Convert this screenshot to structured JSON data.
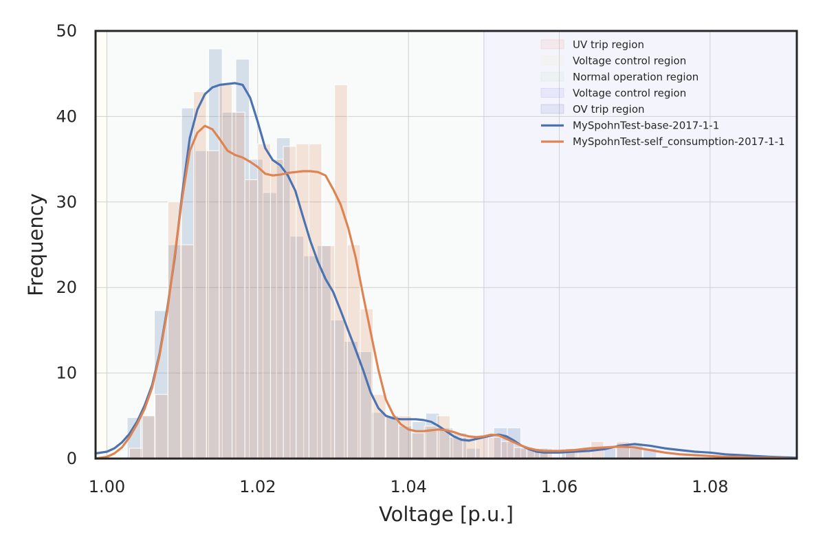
{
  "chart_data": {
    "type": "bar",
    "xlabel": "Voltage [p.u.]",
    "ylabel": "Frequency",
    "xlim": [
      0.9985,
      1.0915
    ],
    "ylim": [
      0,
      50
    ],
    "x_ticks": [
      "1.00",
      "1.02",
      "1.04",
      "1.06",
      "1.08"
    ],
    "x_tick_values": [
      1.0,
      1.02,
      1.04,
      1.06,
      1.08
    ],
    "y_ticks": [
      "0",
      "10",
      "20",
      "30",
      "40",
      "50"
    ],
    "y_tick_values": [
      0,
      10,
      20,
      30,
      40,
      50
    ],
    "grid": true,
    "legend_placement": "top-right",
    "regions": [
      {
        "label": "UV trip region",
        "x": [
          0.95,
          0.97
        ],
        "color": "#f2b8a8"
      },
      {
        "label": "Voltage control region",
        "x": [
          0.97,
          1.0
        ],
        "color": "#f5f0d0"
      },
      {
        "label": "Normal operation region",
        "x": [
          1.0,
          1.05
        ],
        "color": "#cfe6d5"
      },
      {
        "label": "Voltage control region",
        "x": [
          1.05,
          1.1
        ],
        "color": "#b4b4f0"
      },
      {
        "label": "OV trip region",
        "x": [
          1.1,
          1.15
        ],
        "color": "#9ca0d8"
      }
    ],
    "histograms": [
      {
        "name": "MySpohnTest-base-2017-1-1",
        "color": "#4c72b0",
        "bins": [
          {
            "x0": 1.0027,
            "x1": 1.0045,
            "value": 4.8
          },
          {
            "x0": 1.0045,
            "x1": 1.0063,
            "value": 5.0
          },
          {
            "x0": 1.0063,
            "x1": 1.0081,
            "value": 17.3
          },
          {
            "x0": 1.0081,
            "x1": 1.0099,
            "value": 25.0
          },
          {
            "x0": 1.0099,
            "x1": 1.0117,
            "value": 41.0
          },
          {
            "x0": 1.0117,
            "x1": 1.0135,
            "value": 36.0
          },
          {
            "x0": 1.0135,
            "x1": 1.0153,
            "value": 47.9
          },
          {
            "x0": 1.0153,
            "x1": 1.0171,
            "value": 40.5
          },
          {
            "x0": 1.0171,
            "x1": 1.0189,
            "value": 46.7
          },
          {
            "x0": 1.0189,
            "x1": 1.0207,
            "value": 35.0
          },
          {
            "x0": 1.0207,
            "x1": 1.0225,
            "value": 31.1
          },
          {
            "x0": 1.0225,
            "x1": 1.0243,
            "value": 37.5
          },
          {
            "x0": 1.0243,
            "x1": 1.0261,
            "value": 26.0
          },
          {
            "x0": 1.0261,
            "x1": 1.0279,
            "value": 23.7
          },
          {
            "x0": 1.0279,
            "x1": 1.0297,
            "value": 24.9
          },
          {
            "x0": 1.0297,
            "x1": 1.0315,
            "value": 16.2
          },
          {
            "x0": 1.0315,
            "x1": 1.0333,
            "value": 13.7
          },
          {
            "x0": 1.0333,
            "x1": 1.0351,
            "value": 12.5
          },
          {
            "x0": 1.0351,
            "x1": 1.0369,
            "value": 5.4
          },
          {
            "x0": 1.0369,
            "x1": 1.0387,
            "value": 5.0
          },
          {
            "x0": 1.0387,
            "x1": 1.0405,
            "value": 3.8
          },
          {
            "x0": 1.0405,
            "x1": 1.0423,
            "value": 4.3
          },
          {
            "x0": 1.0423,
            "x1": 1.0441,
            "value": 5.3
          },
          {
            "x0": 1.0441,
            "x1": 1.0459,
            "value": 3.6
          },
          {
            "x0": 1.0459,
            "x1": 1.0477,
            "value": 3.0
          },
          {
            "x0": 1.0477,
            "x1": 1.0495,
            "value": 1.2
          },
          {
            "x0": 1.0513,
            "x1": 1.0531,
            "value": 3.6
          },
          {
            "x0": 1.0531,
            "x1": 1.0549,
            "value": 3.6
          },
          {
            "x0": 1.0549,
            "x1": 1.0567,
            "value": 1.2
          },
          {
            "x0": 1.0567,
            "x1": 1.0585,
            "value": 1.2
          },
          {
            "x0": 1.0603,
            "x1": 1.0621,
            "value": 0.8
          },
          {
            "x0": 1.0657,
            "x1": 1.0675,
            "value": 1.2
          },
          {
            "x0": 1.0675,
            "x1": 1.0693,
            "value": 1.8
          },
          {
            "x0": 1.0693,
            "x1": 1.0711,
            "value": 1.8
          },
          {
            "x0": 1.0711,
            "x1": 1.0729,
            "value": 1.2
          }
        ]
      },
      {
        "name": "MySpohnTest-self_consumption-2017-1-1",
        "color": "#dd8452",
        "bins": [
          {
            "x0": 1.003,
            "x1": 1.0047,
            "value": 1.2
          },
          {
            "x0": 1.0047,
            "x1": 1.0064,
            "value": 5.0
          },
          {
            "x0": 1.0064,
            "x1": 1.0081,
            "value": 7.5
          },
          {
            "x0": 1.0081,
            "x1": 1.0098,
            "value": 30.0
          },
          {
            "x0": 1.0098,
            "x1": 1.0115,
            "value": 25.0
          },
          {
            "x0": 1.0115,
            "x1": 1.0132,
            "value": 42.9
          },
          {
            "x0": 1.0132,
            "x1": 1.0149,
            "value": 36.0
          },
          {
            "x0": 1.0149,
            "x1": 1.0166,
            "value": 43.7
          },
          {
            "x0": 1.0166,
            "x1": 1.0183,
            "value": 40.5
          },
          {
            "x0": 1.0183,
            "x1": 1.02,
            "value": 32.6
          },
          {
            "x0": 1.02,
            "x1": 1.0217,
            "value": 36.8
          },
          {
            "x0": 1.0217,
            "x1": 1.0234,
            "value": 35.0
          },
          {
            "x0": 1.0234,
            "x1": 1.0251,
            "value": 36.5
          },
          {
            "x0": 1.0251,
            "x1": 1.0268,
            "value": 36.8
          },
          {
            "x0": 1.0268,
            "x1": 1.0285,
            "value": 36.8
          },
          {
            "x0": 1.0285,
            "x1": 1.0302,
            "value": 24.9
          },
          {
            "x0": 1.0302,
            "x1": 1.0319,
            "value": 43.7
          },
          {
            "x0": 1.0319,
            "x1": 1.0336,
            "value": 25.0
          },
          {
            "x0": 1.0336,
            "x1": 1.0353,
            "value": 17.5
          },
          {
            "x0": 1.0353,
            "x1": 1.037,
            "value": 7.5
          },
          {
            "x0": 1.037,
            "x1": 1.0387,
            "value": 5.0
          },
          {
            "x0": 1.0387,
            "x1": 1.0404,
            "value": 5.0
          },
          {
            "x0": 1.0404,
            "x1": 1.0421,
            "value": 3.0
          },
          {
            "x0": 1.0421,
            "x1": 1.0438,
            "value": 3.8
          },
          {
            "x0": 1.0438,
            "x1": 1.0455,
            "value": 5.0
          },
          {
            "x0": 1.0455,
            "x1": 1.0472,
            "value": 2.5
          },
          {
            "x0": 1.0472,
            "x1": 1.0489,
            "value": 2.5
          },
          {
            "x0": 1.0489,
            "x1": 1.0506,
            "value": 2.5
          },
          {
            "x0": 1.0506,
            "x1": 1.0523,
            "value": 2.5
          },
          {
            "x0": 1.0523,
            "x1": 1.054,
            "value": 2.0
          },
          {
            "x0": 1.054,
            "x1": 1.0557,
            "value": 1.3
          },
          {
            "x0": 1.0557,
            "x1": 1.0574,
            "value": 1.2
          },
          {
            "x0": 1.0574,
            "x1": 1.0591,
            "value": 1.2
          },
          {
            "x0": 1.0608,
            "x1": 1.0625,
            "value": 1.2
          },
          {
            "x0": 1.0625,
            "x1": 1.0642,
            "value": 1.2
          },
          {
            "x0": 1.0642,
            "x1": 1.0659,
            "value": 2.0
          },
          {
            "x0": 1.0676,
            "x1": 1.0693,
            "value": 2.0
          },
          {
            "x0": 1.0693,
            "x1": 1.071,
            "value": 1.2
          }
        ]
      }
    ],
    "series": [
      {
        "name": "MySpohnTest-base-2017-1-1",
        "color": "#4c72b0",
        "x": [
          0.9985,
          1.0,
          1.001,
          1.002,
          1.003,
          1.004,
          1.005,
          1.006,
          1.007,
          1.008,
          1.009,
          1.01,
          1.011,
          1.012,
          1.013,
          1.014,
          1.015,
          1.016,
          1.017,
          1.018,
          1.019,
          1.02,
          1.021,
          1.022,
          1.023,
          1.024,
          1.025,
          1.026,
          1.027,
          1.028,
          1.029,
          1.03,
          1.031,
          1.032,
          1.033,
          1.034,
          1.035,
          1.036,
          1.037,
          1.038,
          1.039,
          1.04,
          1.041,
          1.042,
          1.043,
          1.044,
          1.045,
          1.046,
          1.047,
          1.048,
          1.049,
          1.05,
          1.051,
          1.052,
          1.053,
          1.054,
          1.055,
          1.056,
          1.057,
          1.058,
          1.059,
          1.06,
          1.062,
          1.064,
          1.066,
          1.068,
          1.07,
          1.072,
          1.074,
          1.076,
          1.078,
          1.08,
          1.082,
          1.084,
          1.086,
          1.088,
          1.0915
        ],
        "y": [
          0.6,
          0.8,
          1.2,
          1.9,
          2.9,
          4.3,
          6.2,
          8.6,
          12.3,
          17.5,
          23.5,
          31.0,
          37.5,
          40.8,
          42.6,
          43.4,
          43.7,
          43.8,
          43.9,
          43.7,
          42.2,
          39.4,
          36.3,
          34.9,
          34.3,
          33.1,
          31.3,
          28.3,
          25.4,
          23.0,
          21.0,
          19.5,
          17.3,
          15.0,
          12.7,
          10.3,
          7.7,
          5.9,
          5.0,
          4.7,
          4.6,
          4.6,
          4.6,
          4.5,
          4.3,
          3.8,
          3.2,
          2.6,
          2.2,
          2.1,
          2.3,
          2.5,
          2.7,
          2.8,
          2.6,
          2.1,
          1.5,
          1.1,
          0.8,
          0.7,
          0.7,
          0.7,
          0.8,
          0.9,
          1.1,
          1.5,
          1.7,
          1.5,
          1.2,
          1.0,
          0.8,
          0.7,
          0.5,
          0.4,
          0.3,
          0.2,
          0.1
        ]
      },
      {
        "name": "MySpohnTest-self_consumption-2017-1-1",
        "color": "#dd8452",
        "x": [
          0.9985,
          1.0,
          1.001,
          1.002,
          1.003,
          1.004,
          1.005,
          1.006,
          1.007,
          1.008,
          1.009,
          1.01,
          1.011,
          1.012,
          1.013,
          1.014,
          1.015,
          1.016,
          1.017,
          1.018,
          1.019,
          1.02,
          1.021,
          1.022,
          1.023,
          1.024,
          1.025,
          1.026,
          1.027,
          1.028,
          1.029,
          1.03,
          1.031,
          1.032,
          1.033,
          1.034,
          1.035,
          1.036,
          1.037,
          1.038,
          1.039,
          1.04,
          1.041,
          1.042,
          1.043,
          1.044,
          1.045,
          1.046,
          1.047,
          1.048,
          1.049,
          1.05,
          1.051,
          1.052,
          1.053,
          1.054,
          1.055,
          1.056,
          1.057,
          1.058,
          1.059,
          1.06,
          1.062,
          1.064,
          1.066,
          1.068,
          1.07,
          1.072,
          1.074,
          1.076,
          1.078,
          1.08,
          1.082,
          1.084,
          1.086,
          1.088,
          1.0915
        ],
        "y": [
          0.0,
          0.2,
          0.6,
          1.3,
          2.5,
          4.0,
          5.8,
          8.3,
          12.1,
          17.2,
          23.8,
          30.5,
          36.0,
          38.1,
          38.9,
          38.5,
          37.3,
          36.0,
          35.5,
          35.2,
          34.7,
          34.1,
          33.3,
          33.1,
          33.2,
          33.4,
          33.5,
          33.6,
          33.6,
          33.5,
          33.1,
          31.5,
          29.7,
          27.0,
          23.5,
          19.0,
          14.7,
          10.4,
          6.9,
          5.1,
          4.0,
          3.4,
          3.2,
          3.2,
          3.3,
          3.4,
          3.3,
          3.1,
          2.8,
          2.6,
          2.5,
          2.6,
          2.8,
          2.7,
          2.3,
          1.9,
          1.5,
          1.2,
          1.0,
          0.9,
          0.9,
          0.9,
          1.0,
          1.2,
          1.3,
          1.4,
          1.3,
          1.0,
          0.7,
          0.5,
          0.4,
          0.3,
          0.2,
          0.2,
          0.1,
          0.1,
          0.0
        ]
      }
    ]
  }
}
